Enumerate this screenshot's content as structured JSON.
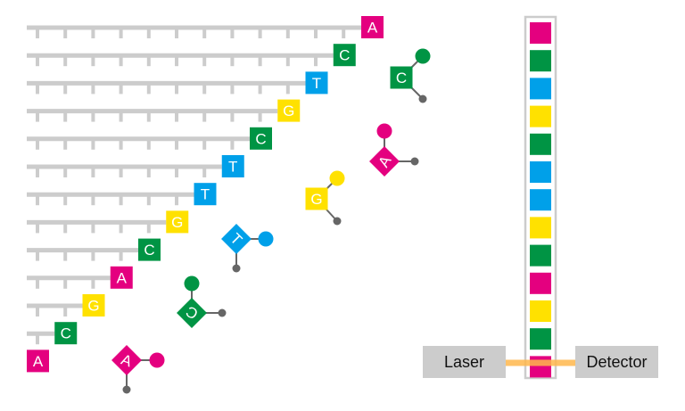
{
  "colors": {
    "A": "#e4007f",
    "C": "#009444",
    "T": "#00a0e9",
    "G": "#ffe100",
    "backbone": "#cccccc",
    "link": "#666666",
    "laser_beam": "#ffb84d"
  },
  "strands": [
    "A",
    "C",
    "T",
    "G",
    "C",
    "T",
    "T",
    "G",
    "C",
    "A",
    "G",
    "C",
    "A"
  ],
  "capillary_bands": [
    "A",
    "C",
    "T",
    "G",
    "C",
    "T",
    "T",
    "G",
    "C",
    "A",
    "G",
    "C",
    "A"
  ],
  "free_nucleotides": [
    "C",
    "A",
    "G",
    "T",
    "C",
    "A"
  ],
  "laser_label": "Laser",
  "detector_label": "Detector"
}
